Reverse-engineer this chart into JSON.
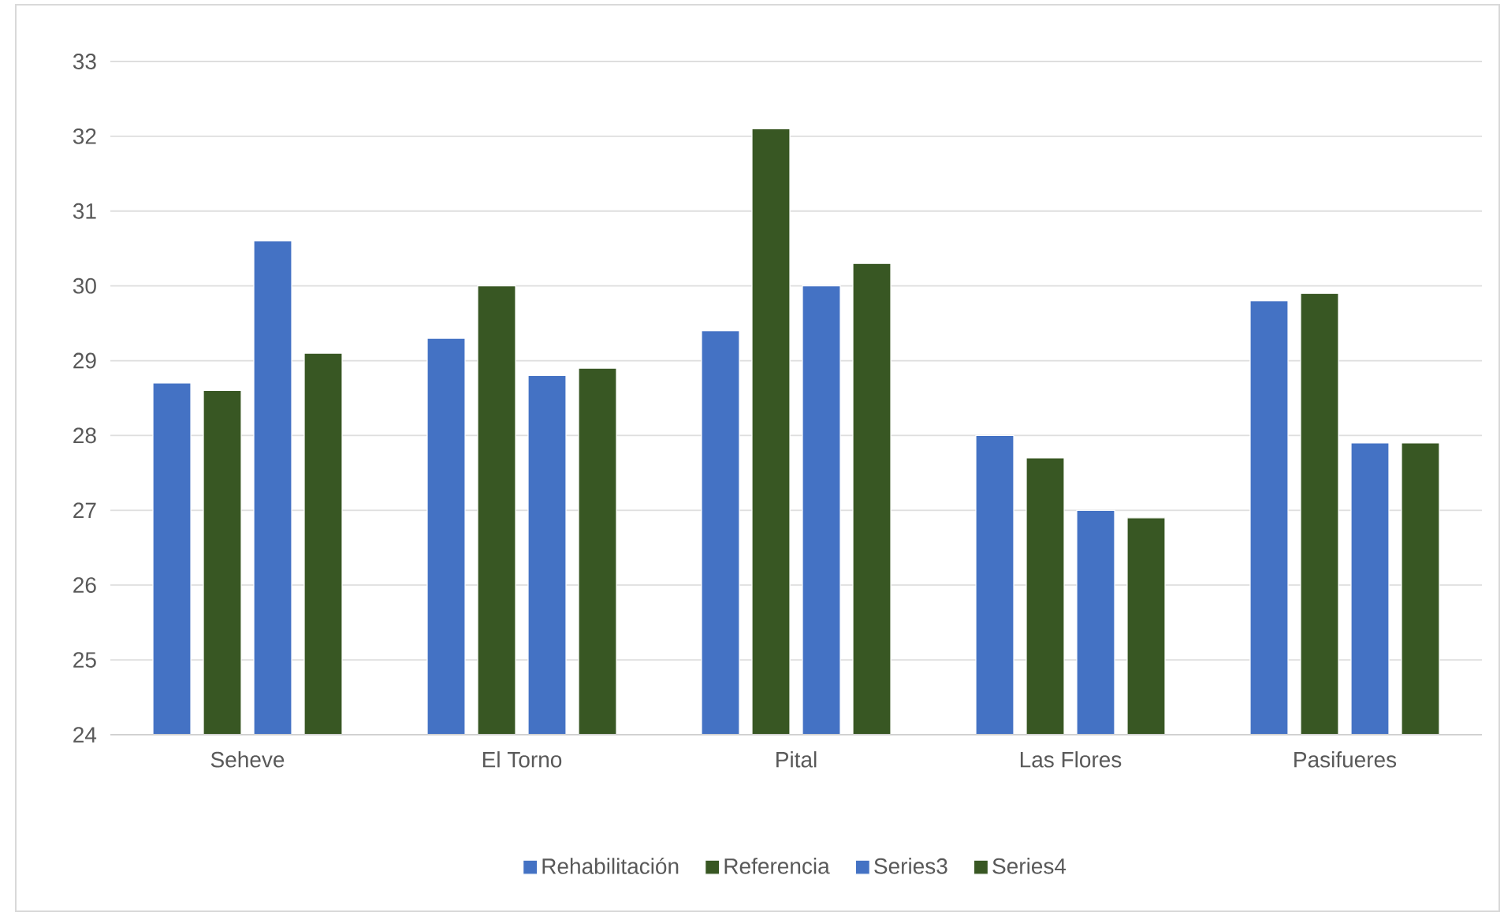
{
  "chart_data": {
    "type": "bar",
    "categories": [
      "Seheve",
      "El Torno",
      "Pital",
      "Las Flores",
      "Pasifueres"
    ],
    "series": [
      {
        "name": "Rehabilitación",
        "color": "#4472c4",
        "values": [
          28.7,
          29.3,
          29.4,
          28.0,
          29.8
        ]
      },
      {
        "name": "Referencia",
        "color": "#385723",
        "values": [
          28.6,
          30.0,
          32.1,
          27.7,
          29.9
        ]
      },
      {
        "name": "Series3",
        "color": "#4472c4",
        "values": [
          30.6,
          28.8,
          30.0,
          27.0,
          27.9
        ]
      },
      {
        "name": "Series4",
        "color": "#385723",
        "values": [
          29.1,
          28.9,
          30.3,
          26.9,
          27.9
        ]
      }
    ],
    "ylim": [
      24,
      33
    ],
    "yticks": [
      24,
      25,
      26,
      27,
      28,
      29,
      30,
      31,
      32,
      33
    ],
    "grid": "y",
    "legend": "bottom"
  }
}
